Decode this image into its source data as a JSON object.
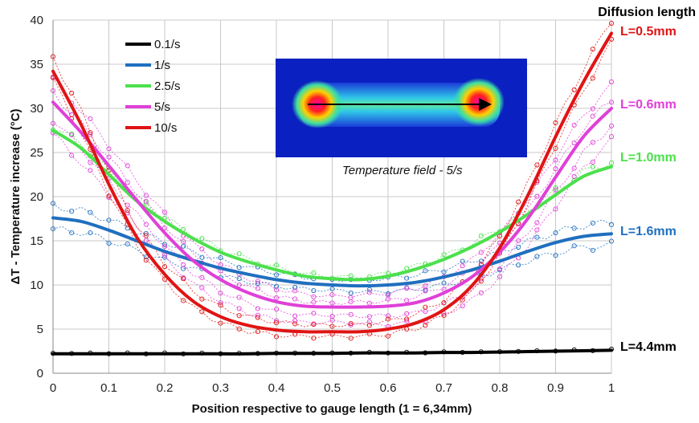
{
  "chart_data": {
    "type": "line",
    "xlabel": "Position respective to gauge length (1 = 6,34mm)",
    "ylabel": "ΔT - Temperature increase (°C)",
    "xlim": [
      0,
      1
    ],
    "ylim": [
      0,
      40
    ],
    "x_ticks": [
      "0",
      "0.1",
      "0.2",
      "0.3",
      "0.4",
      "0.5",
      "0.6",
      "0.7",
      "0.8",
      "0.9",
      "1"
    ],
    "y_ticks": [
      "0",
      "5",
      "10",
      "15",
      "20",
      "25",
      "30",
      "35",
      "40"
    ],
    "grid": true,
    "legend_position": "top-left",
    "x": [
      0,
      0.05,
      0.1,
      0.15,
      0.2,
      0.25,
      0.3,
      0.35,
      0.4,
      0.45,
      0.5,
      0.55,
      0.6,
      0.65,
      0.7,
      0.75,
      0.8,
      0.85,
      0.9,
      0.95,
      1
    ],
    "series": [
      {
        "name": "0.1/s",
        "color": "#000000",
        "values": [
          2.2,
          2.2,
          2.2,
          2.2,
          2.2,
          2.2,
          2.2,
          2.2,
          2.25,
          2.25,
          2.25,
          2.3,
          2.3,
          2.3,
          2.35,
          2.35,
          2.4,
          2.45,
          2.5,
          2.55,
          2.6
        ]
      },
      {
        "name": "1/s",
        "color": "#1f6fbf",
        "values": [
          17.6,
          17.2,
          16.2,
          15.0,
          13.8,
          12.8,
          11.9,
          11.2,
          10.6,
          10.2,
          10.0,
          9.9,
          10.0,
          10.3,
          10.9,
          11.7,
          12.7,
          13.8,
          14.8,
          15.5,
          15.8
        ]
      },
      {
        "name": "2.5/s",
        "color": "#4ce04c",
        "values": [
          27.5,
          25.5,
          22.5,
          19.5,
          17.2,
          15.3,
          13.7,
          12.6,
          11.7,
          11.0,
          10.7,
          10.6,
          11.0,
          11.8,
          12.9,
          14.3,
          16.0,
          18.0,
          20.2,
          22.3,
          23.4
        ]
      },
      {
        "name": "5/s",
        "color": "#e040d8",
        "values": [
          30.7,
          27.3,
          23.5,
          19.6,
          15.9,
          12.8,
          10.6,
          9.1,
          8.1,
          7.6,
          7.5,
          7.5,
          7.6,
          8.0,
          9.1,
          10.9,
          13.7,
          17.5,
          22.2,
          26.8,
          30.0
        ]
      },
      {
        "name": "10/s",
        "color": "#e01414",
        "values": [
          34.2,
          28.2,
          21.4,
          15.4,
          11.2,
          8.2,
          6.4,
          5.4,
          4.9,
          4.7,
          4.7,
          4.7,
          5.0,
          5.7,
          7.2,
          9.9,
          14.2,
          20.1,
          26.8,
          33.0,
          38.5
        ]
      }
    ],
    "annotations": {
      "right_title": "Diffusion length",
      "labels": [
        {
          "text": "L=0.5mm",
          "color": "#e01414"
        },
        {
          "text": "L=0.6mm",
          "color": "#e040d8"
        },
        {
          "text": "L=1.0mm",
          "color": "#4ce04c"
        },
        {
          "text": "L=1.6mm",
          "color": "#1f6fbf"
        },
        {
          "text": "L=4.4mm",
          "color": "#000000"
        }
      ],
      "inset_caption": "Temperature field - 5/s"
    }
  }
}
